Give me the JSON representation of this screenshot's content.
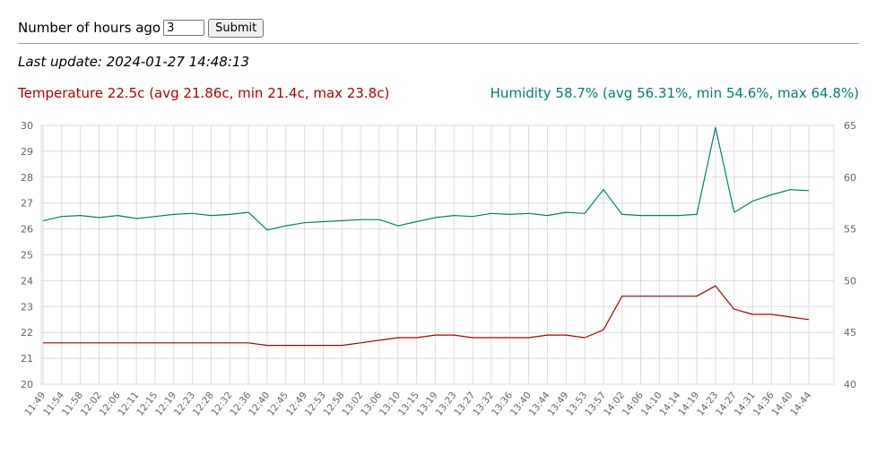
{
  "form": {
    "hours_label": "Number of hours ago",
    "hours_value": "3",
    "submit_label": "Submit"
  },
  "last_update": "Last update: 2024-01-27 14:48:13",
  "summary": {
    "temperature": "Temperature 22.5c (avg 21.86c, min 21.4c, max 23.8c)",
    "humidity": "Humidity 58.7% (avg 56.31%, min 54.6%, max 64.8%)"
  },
  "colors": {
    "temperature": "#b00000",
    "humidity": "#008070",
    "grid": "#dddddd",
    "axis_text": "#666666"
  },
  "chart_data": {
    "type": "line",
    "x": [
      "11:49",
      "11:54",
      "11:58",
      "12:02",
      "12:06",
      "12:11",
      "12:15",
      "12:19",
      "12:23",
      "12:28",
      "12:32",
      "12:36",
      "12:40",
      "12:45",
      "12:49",
      "12:53",
      "12:58",
      "13:02",
      "13:06",
      "13:10",
      "13:15",
      "13:19",
      "13:23",
      "13:27",
      "13:32",
      "13:36",
      "13:40",
      "13:44",
      "13:49",
      "13:53",
      "13:57",
      "14:02",
      "14:06",
      "14:10",
      "14:14",
      "14:19",
      "14:23",
      "14:27",
      "14:31",
      "14:36",
      "14:40",
      "14:44"
    ],
    "y_left": {
      "ylim": [
        20,
        30
      ],
      "ticks": [
        "20",
        "21",
        "22",
        "23",
        "24",
        "25",
        "26",
        "27",
        "28",
        "29",
        "30"
      ]
    },
    "y_right": {
      "ylim": [
        40,
        65
      ],
      "ticks": [
        "40",
        "45",
        "50",
        "55",
        "60",
        "65"
      ]
    },
    "grid": true,
    "series": [
      {
        "name": "Temperature",
        "axis": "left",
        "color": "#b00000",
        "values": [
          21.6,
          21.6,
          21.6,
          21.6,
          21.6,
          21.6,
          21.6,
          21.6,
          21.6,
          21.6,
          21.6,
          21.6,
          21.5,
          21.5,
          21.5,
          21.5,
          21.5,
          21.6,
          21.7,
          21.8,
          21.8,
          21.9,
          21.9,
          21.8,
          21.8,
          21.8,
          21.8,
          21.9,
          21.9,
          21.8,
          22.1,
          23.4,
          23.4,
          23.4,
          23.4,
          23.4,
          23.8,
          22.9,
          22.7,
          22.7,
          22.6,
          22.5
        ]
      },
      {
        "name": "Humidity",
        "axis": "right",
        "color": "#008070",
        "values": [
          55.8,
          56.2,
          56.3,
          56.1,
          56.3,
          56.0,
          56.2,
          56.4,
          56.5,
          56.3,
          56.4,
          56.6,
          54.9,
          55.3,
          55.6,
          55.7,
          55.8,
          55.9,
          55.9,
          55.3,
          55.7,
          56.1,
          56.3,
          56.2,
          56.5,
          56.4,
          56.5,
          56.3,
          56.6,
          56.5,
          58.8,
          56.4,
          56.3,
          56.3,
          56.3,
          56.4,
          64.8,
          56.6,
          57.7,
          58.3,
          58.8,
          58.7
        ]
      }
    ]
  }
}
